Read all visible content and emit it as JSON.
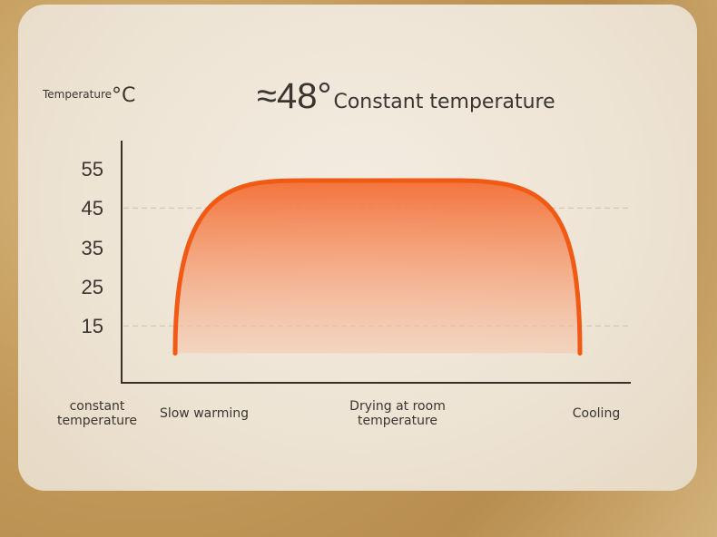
{
  "header": {
    "y_unit_label": "Temperature",
    "y_unit_symbol": "°C",
    "headline_value": "≈48°",
    "headline_text": "Constant temperature"
  },
  "chart_data": {
    "type": "area",
    "ylabel": "Temperature°C",
    "y_ticks": [
      55,
      45,
      35,
      25,
      15
    ],
    "ylim": [
      5,
      60
    ],
    "gridlines_at": [
      45,
      15
    ],
    "x_phase_labels": [
      "constant temperature",
      "Slow warming",
      "Drying at room temperature",
      "Cooling"
    ],
    "series": [
      {
        "start_value": 8,
        "plateau_value": 52,
        "end_value": 8
      }
    ],
    "colors": {
      "line": "#f15a14",
      "fill_top": "#f3733a",
      "fill_bottom": "#f6cdb6"
    }
  }
}
